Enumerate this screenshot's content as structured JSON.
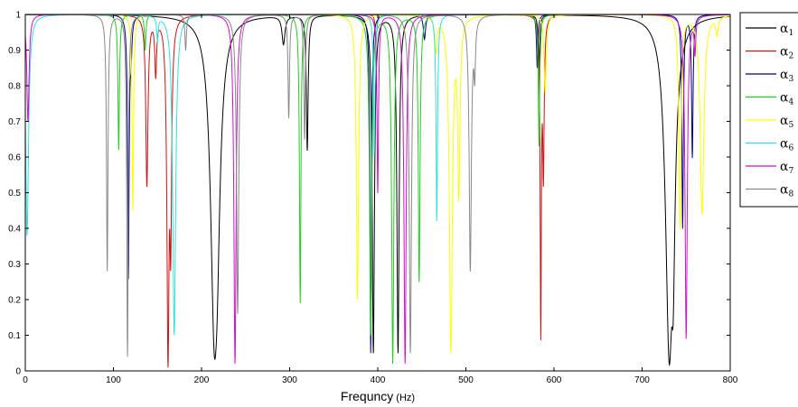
{
  "chart_data": {
    "type": "line",
    "title": "",
    "xlabel": "Frequncy",
    "xlabel_unit": "(Hz)",
    "ylabel": "",
    "xlim": [
      0,
      800
    ],
    "ylim": [
      0,
      1
    ],
    "x_ticks": [
      0,
      100,
      200,
      300,
      400,
      500,
      600,
      700,
      800
    ],
    "y_ticks": [
      0,
      0.1,
      0.2,
      0.3,
      0.4,
      0.5,
      0.6,
      0.7,
      0.8,
      0.9,
      1
    ],
    "grid": false,
    "legend_position": "right",
    "series": [
      {
        "name": "α1",
        "symbol": "α",
        "sub": "1",
        "color": "#000000",
        "dips": [
          [
            215,
            0.05,
            5
          ],
          [
            217,
            0.5,
            3
          ],
          [
            293,
            0.92,
            2
          ],
          [
            320,
            0.62,
            1.2
          ],
          [
            395,
            0.05,
            1.5
          ],
          [
            423,
            0.05,
            1.5
          ],
          [
            583,
            0.85,
            1
          ],
          [
            731,
            0.02,
            5
          ],
          [
            735,
            0.3,
            2
          ]
        ]
      },
      {
        "name": "α2",
        "symbol": "α",
        "sub": "2",
        "color": "#cc1111",
        "dips": [
          [
            138,
            0.52,
            1.5
          ],
          [
            148,
            0.84,
            1.2
          ],
          [
            162,
            0.01,
            1.5
          ],
          [
            165,
            0.35,
            1.2
          ],
          [
            398,
            0.92,
            1
          ],
          [
            585,
            0.09,
            0.8
          ],
          [
            588,
            0.55,
            1
          ]
        ]
      },
      {
        "name": "α3",
        "symbol": "α",
        "sub": "3",
        "color": "#000080",
        "dips": [
          [
            117,
            0.26,
            1
          ],
          [
            120,
            0.9,
            1
          ],
          [
            392,
            0.05,
            1
          ],
          [
            453,
            0.93,
            1.5
          ],
          [
            581,
            0.85,
            1
          ],
          [
            746,
            0.4,
            1
          ],
          [
            757,
            0.6,
            1
          ]
        ]
      },
      {
        "name": "α4",
        "symbol": "α",
        "sub": "4",
        "color": "#22cc22",
        "dips": [
          [
            106,
            0.62,
            1
          ],
          [
            136,
            0.9,
            1
          ],
          [
            312,
            0.19,
            1
          ],
          [
            392,
            0.1,
            1.5
          ],
          [
            417,
            0.02,
            1.5
          ],
          [
            447,
            0.25,
            1.2
          ],
          [
            583,
            0.63,
            1
          ]
        ]
      },
      {
        "name": "α5",
        "symbol": "α",
        "sub": "5",
        "color": "#ffff00",
        "dips": [
          [
            122,
            0.45,
            1
          ],
          [
            377,
            0.2,
            1.5
          ],
          [
            466,
            0.9,
            1.5
          ],
          [
            483,
            0.05,
            2
          ],
          [
            492,
            0.5,
            1.5
          ],
          [
            590,
            0.78,
            1.5
          ],
          [
            743,
            0.4,
            1.5
          ],
          [
            768,
            0.44,
            2.5
          ],
          [
            785,
            0.95,
            1.5
          ]
        ]
      },
      {
        "name": "α6",
        "symbol": "α",
        "sub": "6",
        "color": "#33dddd",
        "dips": [
          [
            2,
            0.38,
            2
          ],
          [
            150,
            0.93,
            1
          ],
          [
            169,
            0.1,
            2
          ],
          [
            396,
            0.6,
            1
          ],
          [
            467,
            0.42,
            1
          ]
        ]
      },
      {
        "name": "α7",
        "symbol": "α",
        "sub": "7",
        "color": "#cc11cc",
        "dips": [
          [
            3,
            0.7,
            1.5
          ],
          [
            238,
            0.02,
            1.5
          ],
          [
            400,
            0.5,
            1
          ],
          [
            431,
            0.02,
            1.5
          ],
          [
            750,
            0.09,
            1.5
          ],
          [
            760,
            0.9,
            1
          ]
        ]
      },
      {
        "name": "α8",
        "symbol": "α",
        "sub": "8",
        "color": "#888888",
        "dips": [
          [
            93,
            0.28,
            1
          ],
          [
            116,
            0.04,
            1
          ],
          [
            182,
            0.9,
            1
          ],
          [
            241,
            0.16,
            1.5
          ],
          [
            299,
            0.71,
            1
          ],
          [
            317,
            0.65,
            1
          ],
          [
            437,
            0.05,
            1.5
          ],
          [
            505,
            0.28,
            1.5
          ],
          [
            510,
            0.85,
            1
          ]
        ]
      }
    ]
  }
}
